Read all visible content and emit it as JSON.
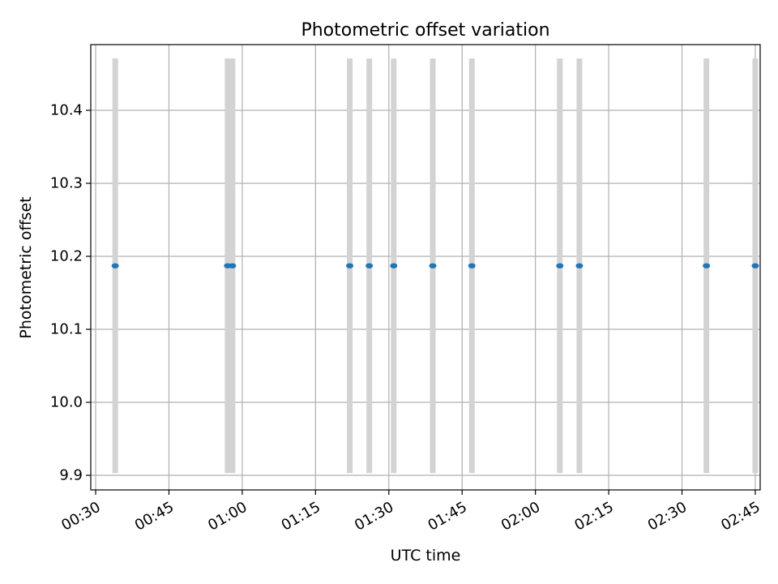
{
  "chart_data": {
    "type": "scatter",
    "title": "Photometric offset variation",
    "xlabel": "UTC time",
    "ylabel": "Photometric offset",
    "xlim": [
      "00:29",
      "02:46"
    ],
    "ylim": [
      9.88,
      10.49
    ],
    "x_ticks": [
      "00:30",
      "00:45",
      "01:00",
      "01:15",
      "01:30",
      "01:45",
      "02:00",
      "02:15",
      "02:30",
      "02:45"
    ],
    "y_ticks": [
      9.9,
      10.0,
      10.1,
      10.2,
      10.3,
      10.4
    ],
    "grid": true,
    "series": [
      {
        "marker_color": "#1f77b4",
        "errorbar_color": "#d3d3d3",
        "x": [
          "00:34",
          "00:57",
          "00:58",
          "01:22",
          "01:26",
          "01:31",
          "01:39",
          "01:47",
          "02:05",
          "02:09",
          "02:35",
          "02:45"
        ],
        "y": [
          10.187,
          10.187,
          10.187,
          10.187,
          10.187,
          10.187,
          10.187,
          10.187,
          10.187,
          10.187,
          10.187,
          10.187
        ],
        "y_err": [
          0.284,
          0.284,
          0.284,
          0.284,
          0.284,
          0.284,
          0.284,
          0.284,
          0.284,
          0.284,
          0.284,
          0.284
        ]
      }
    ]
  }
}
